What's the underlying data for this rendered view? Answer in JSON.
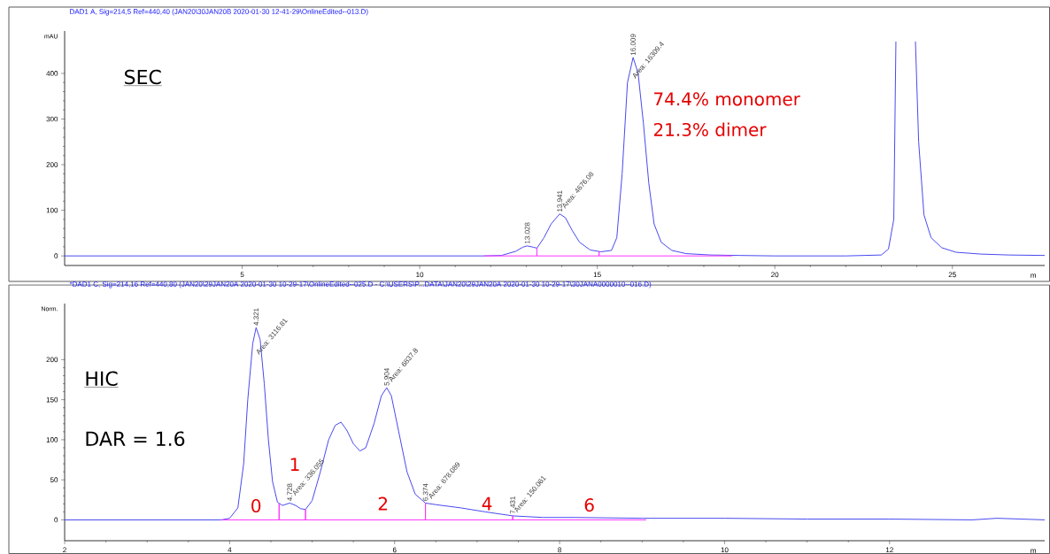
{
  "chart_data": [
    {
      "type": "line",
      "title": "DAD1 A, Sig=214,5 Ref=440,40 (JAN20\\30JAN20B 2020-01-30 12-41-29\\OnlineEdited--013.D)",
      "xlabel": "m",
      "ylabel": "mAU",
      "xlim": [
        0,
        27.6
      ],
      "ylim": [
        -21,
        493
      ],
      "xticks": [
        5,
        10,
        15,
        20,
        25
      ],
      "yticks": [
        0,
        100,
        200,
        300,
        400
      ],
      "annotations": [
        "SEC",
        "74.4% monomer",
        "21.3% dimer",
        "Area: 4676.08",
        "Area: 16309.4",
        {
          "text": "13.028",
          "x": 13.028,
          "y": 22
        },
        {
          "text": "13.941",
          "x": 13.941,
          "y": 92
        },
        {
          "text": "16.009",
          "x": 16.009,
          "y": 435
        }
      ],
      "series": [
        {
          "color": "#4848f0",
          "x": [
            0,
            2,
            4,
            6,
            8,
            10,
            11.8,
            12.3,
            12.7,
            12.9,
            13.028,
            13.2,
            13.3,
            13.5,
            13.7,
            13.941,
            14.1,
            14.3,
            14.5,
            14.8,
            15.1,
            15.4,
            15.55,
            15.7,
            15.85,
            16.009,
            16.15,
            16.3,
            16.45,
            16.6,
            16.8,
            17.1,
            17.5,
            18.2,
            19,
            20,
            22,
            23.0,
            23.2,
            23.35,
            23.41,
            23.7,
            23.96,
            24.05,
            24.2,
            24.4,
            24.7,
            25.1,
            25.8,
            26.6,
            27.6
          ],
          "values": [
            0,
            0,
            0,
            0,
            0,
            0,
            0,
            1,
            10,
            19,
            22,
            19,
            17,
            40,
            70,
            92,
            84,
            55,
            30,
            13,
            9,
            12,
            40,
            180,
            380,
            435,
            400,
            290,
            160,
            70,
            30,
            12,
            5,
            2,
            1,
            0,
            0,
            2,
            15,
            80,
            470,
            null,
            470,
            250,
            90,
            40,
            18,
            8,
            4,
            2,
            1
          ]
        },
        {
          "color": "#ff33ff",
          "x": [
            11.8,
            13.3,
            13.3,
            13.3,
            15.05,
            15.05,
            15.05,
            18.8
          ],
          "values": [
            0,
            0,
            17,
            0,
            0,
            10,
            0,
            0
          ]
        }
      ]
    },
    {
      "type": "line",
      "title": "*DAD1 C, Sig=214,16 Ref=440,80 (JAN20\\29JAN20A 2020-01-30 10-29-17\\OnlineEdited--025.D - C:\\USERS\\P...DATA\\JAN20\\29JAN20A 2020-01-30 10-29-17\\30JANA0000010--016.D)",
      "xlabel": "m",
      "ylabel": "Norm.",
      "xlim": [
        2,
        13.88
      ],
      "ylim": [
        -26,
        270
      ],
      "xticks": [
        2,
        4,
        6,
        8,
        10,
        12
      ],
      "yticks": [
        0,
        50,
        100,
        150,
        200
      ],
      "annotations": [
        "HIC",
        "DAR = 1.6",
        "Area: 3116.81",
        "Area: 336.055",
        "Area: 6837.8",
        "Area: 678.089",
        "Area: 150.061",
        "0",
        "1",
        "2",
        "4",
        "6",
        {
          "text": "4.321",
          "x": 4.321,
          "y": 240
        },
        {
          "text": "4.728",
          "x": 4.728,
          "y": 21
        },
        {
          "text": "5.904",
          "x": 5.904,
          "y": 165
        },
        {
          "text": "6.374",
          "x": 6.374,
          "y": 21
        },
        {
          "text": "7.431",
          "x": 7.431,
          "y": 5
        }
      ],
      "series": [
        {
          "color": "#4848f0",
          "x": [
            2,
            2.5,
            3,
            3.5,
            3.9,
            4.0,
            4.1,
            4.17,
            4.22,
            4.28,
            4.321,
            4.37,
            4.42,
            4.47,
            4.52,
            4.58,
            4.64,
            4.728,
            4.8,
            4.86,
            4.92,
            5.0,
            5.1,
            5.2,
            5.28,
            5.35,
            5.42,
            5.5,
            5.58,
            5.65,
            5.75,
            5.84,
            5.904,
            5.96,
            6.05,
            6.15,
            6.25,
            6.374,
            6.5,
            6.8,
            7.1,
            7.431,
            7.8,
            8.2,
            9,
            10,
            11,
            12,
            13,
            13.3,
            13.6,
            13.88
          ],
          "values": [
            0,
            0,
            0,
            0,
            0,
            2,
            15,
            70,
            150,
            220,
            240,
            225,
            170,
            100,
            48,
            22,
            18,
            21,
            18,
            14,
            13,
            24,
            60,
            100,
            118,
            122,
            112,
            95,
            86,
            90,
            120,
            155,
            165,
            155,
            110,
            60,
            32,
            21,
            19,
            15,
            10,
            5,
            3,
            3,
            2,
            2,
            1,
            1,
            0,
            2,
            1,
            0
          ]
        },
        {
          "color": "#ff33ff",
          "x": [
            3.9,
            4.6,
            4.6,
            4.6,
            4.92,
            4.92,
            4.92,
            6.374,
            6.374,
            6.374,
            7.431,
            7.431,
            7.431,
            9.05
          ],
          "values": [
            0,
            0,
            20,
            0,
            0,
            13,
            0,
            0,
            21,
            0,
            0,
            5,
            0,
            0
          ]
        }
      ]
    }
  ]
}
